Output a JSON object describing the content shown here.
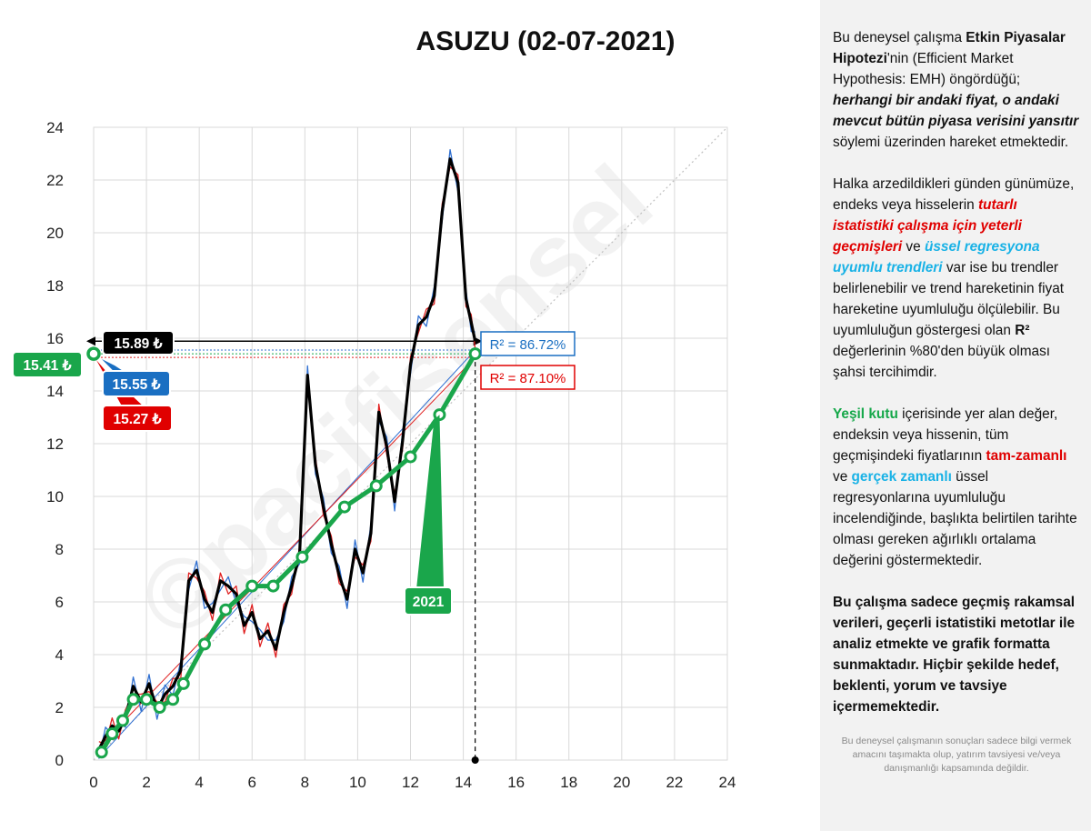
{
  "chart_data": {
    "type": "line",
    "title": "ASUZU (02-07-2021)",
    "xlim": [
      0,
      24
    ],
    "ylim": [
      0,
      24
    ],
    "x_ticks": [
      0,
      2,
      4,
      6,
      8,
      10,
      12,
      14,
      16,
      18,
      20,
      22,
      24
    ],
    "y_ticks": [
      0,
      2,
      4,
      6,
      8,
      10,
      12,
      14,
      16,
      18,
      20,
      22,
      24
    ],
    "grid": true,
    "current_x": 14.45,
    "series": [
      {
        "color": "#000000",
        "x": [
          0.2,
          0.45,
          0.7,
          0.95,
          1.2,
          1.5,
          1.8,
          2.1,
          2.4,
          2.7,
          3.0,
          3.3,
          3.6,
          3.9,
          4.2,
          4.5,
          4.8,
          5.1,
          5.4,
          5.7,
          6.0,
          6.3,
          6.6,
          6.9,
          7.2,
          7.5,
          7.8,
          8.1,
          8.4,
          8.7,
          9.0,
          9.3,
          9.6,
          9.9,
          10.2,
          10.5,
          10.8,
          11.1,
          11.4,
          11.7,
          12.0,
          12.3,
          12.6,
          12.9,
          13.2,
          13.5,
          13.8,
          14.1,
          14.3,
          14.45
        ],
        "y": [
          0.4,
          0.9,
          1.3,
          1.1,
          1.6,
          2.8,
          2.2,
          2.9,
          1.9,
          2.5,
          2.8,
          3.4,
          6.8,
          7.2,
          6.1,
          5.6,
          6.8,
          6.6,
          6.3,
          5.1,
          5.6,
          4.6,
          4.9,
          4.2,
          5.6,
          6.6,
          7.8,
          14.6,
          11.2,
          9.6,
          8.2,
          7.0,
          6.1,
          8.0,
          7.1,
          8.6,
          13.2,
          11.9,
          9.8,
          12.1,
          15.0,
          16.5,
          16.8,
          17.6,
          20.8,
          22.8,
          21.9,
          17.5,
          16.6,
          15.89
        ]
      },
      {
        "color": "#1aa64b",
        "x": [
          0.3,
          0.7,
          1.1,
          1.5,
          2.0,
          2.5,
          3.0,
          3.4,
          4.2,
          5.0,
          6.0,
          6.8,
          7.9,
          9.5,
          10.7,
          12.0,
          13.1,
          14.45
        ],
        "y": [
          0.3,
          1.0,
          1.5,
          2.3,
          2.3,
          2.0,
          2.3,
          2.9,
          4.4,
          5.7,
          6.6,
          6.6,
          7.7,
          9.6,
          10.4,
          11.5,
          13.1,
          15.41
        ]
      }
    ],
    "r2_labels": [
      "R² = 86.72%",
      "R² = 87.10%"
    ],
    "value_labels": [
      "15.89 ₺",
      "15.55 ₺",
      "15.27 ₺",
      "15.41 ₺"
    ],
    "year_label": "2021",
    "watermark": "©pacifisensel"
  },
  "panel": {
    "p1": [
      "Bu deneysel çalışma ",
      "Etkin Piyasalar Hipotezi",
      "'nin (Efficient Market Hypothesis: EMH) öngördüğü; ",
      "herhangi bir andaki fiyat, o andaki mevcut bütün piyasa verisini yansıtır",
      "  söylemi üzerinden hareket etmektedir."
    ],
    "p2": [
      "Halka arzedildikleri günden günümüze, endeks veya hisselerin ",
      "tutarlı istatistiki çalışma için yeterli geçmişleri",
      " ve ",
      "üssel regresyona uyumlu trendleri",
      " var ise bu trendler belirlenebilir  ve trend hareketinin fiyat hareketine uyumluluğu ölçülebilir. Bu uyumluluğun göstergesi olan ",
      "R²",
      " değerlerinin %80'den büyük olması şahsi tercihimdir."
    ],
    "p3": [
      "Yeşil kutu",
      " içerisinde yer alan değer, endeksin veya hissenin, tüm geçmişindeki fiyatlarının ",
      "tam-zamanlı",
      " ve ",
      "gerçek zamanlı",
      " üssel regresyonlarına uyumluluğu incelendiğinde, başlıkta belirtilen tarihte olması gereken ağırlıklı ortalama değerini göstermektedir."
    ],
    "p4": "Bu çalışma sadece geçmiş rakamsal verileri, geçerli istatistiki metotlar ile  analiz etmekte ve grafik formatta sunmaktadır. Hiçbir şekilde hedef, beklenti, yorum ve tavsiye içermemektedir.",
    "disclaimer": "Bu deneysel çalışmanın sonuçları sadece bilgi vermek amacını taşımakta olup, yatırım tavsiyesi ve/veya danışmanlığı kapsamında değildir."
  }
}
